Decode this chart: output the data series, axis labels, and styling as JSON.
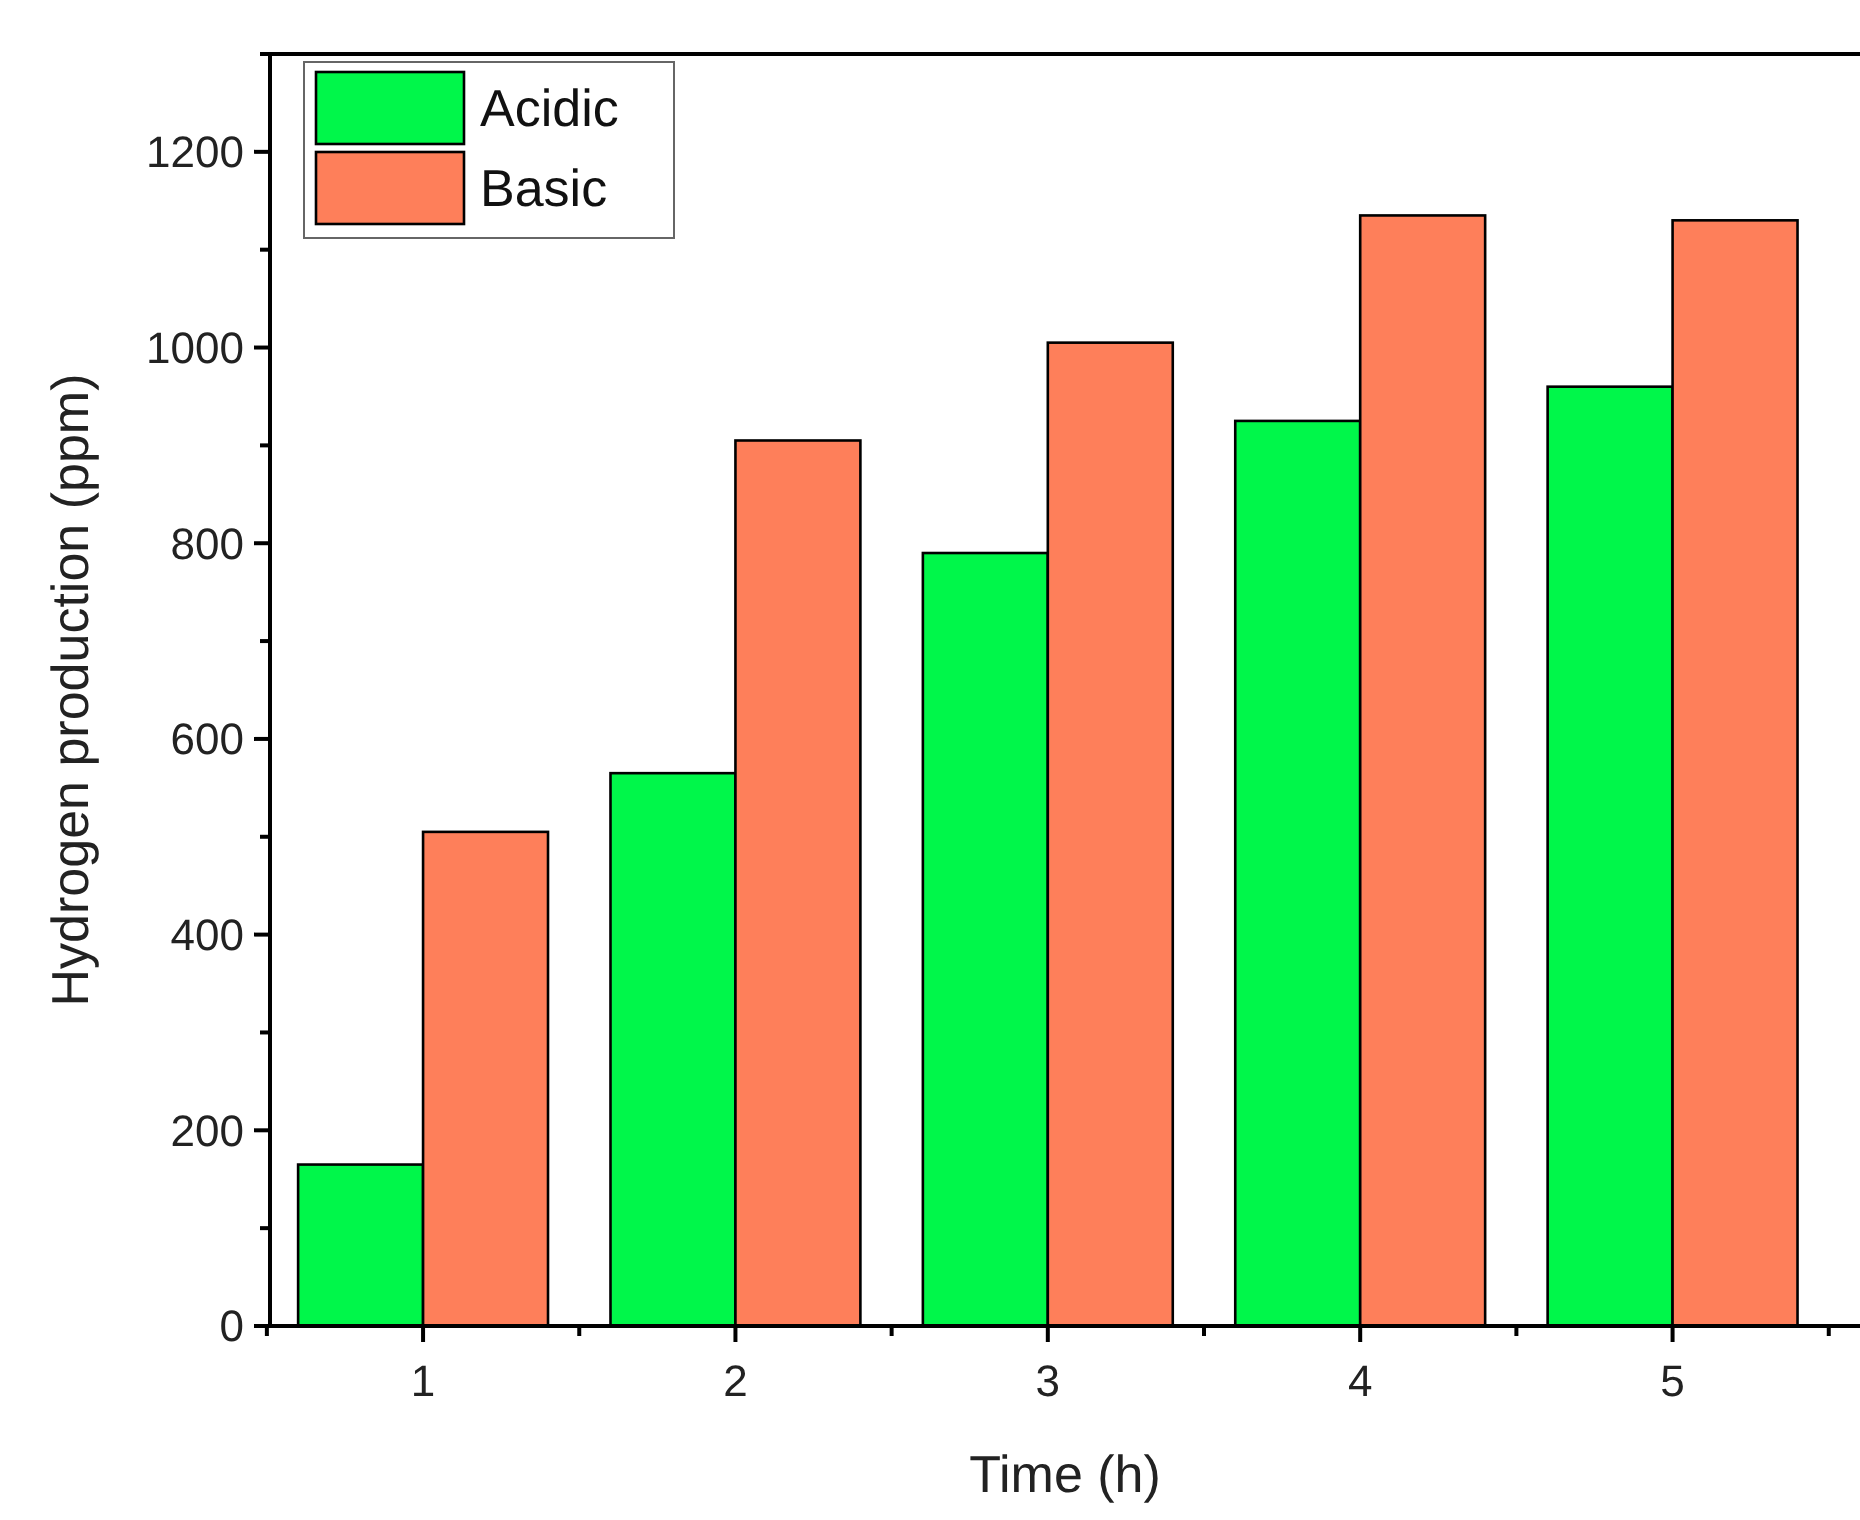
{
  "chart_data": {
    "type": "bar",
    "xlabel": "Time (h)",
    "ylabel": "Hydrogen production (ppm)",
    "categories": [
      "1",
      "2",
      "3",
      "4",
      "5"
    ],
    "series": [
      {
        "name": "Acidic",
        "color": "#00f74a",
        "values": [
          165,
          565,
          790,
          925,
          960
        ]
      },
      {
        "name": "Basic",
        "color": "#fe7f5a",
        "values": [
          505,
          905,
          1005,
          1135,
          1130
        ]
      }
    ],
    "ylim": [
      0,
      1300
    ],
    "yticks": [
      0,
      200,
      400,
      600,
      800,
      1000,
      1200
    ],
    "legend": "top left",
    "grid": false
  }
}
